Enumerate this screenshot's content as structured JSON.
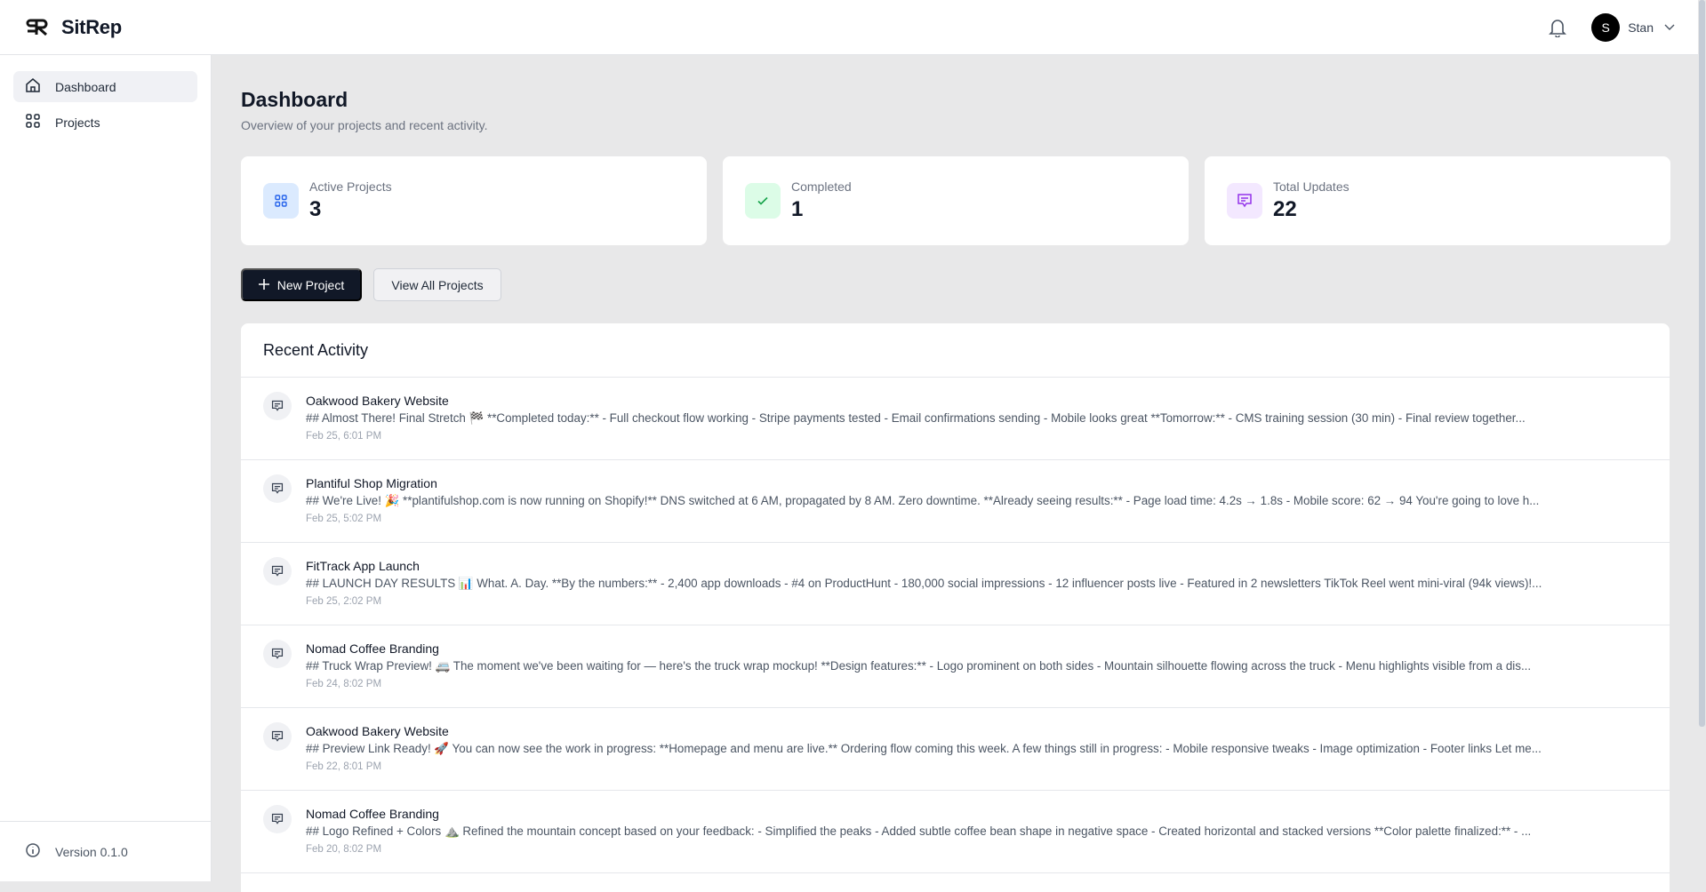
{
  "app": {
    "name": "SitRep",
    "logo_icon": "sr-monogram"
  },
  "header": {
    "notifications_icon": "bell-icon",
    "user": {
      "initial": "S",
      "name": "Stan"
    }
  },
  "sidebar": {
    "items": [
      {
        "label": "Dashboard",
        "icon": "home-icon",
        "active": true
      },
      {
        "label": "Projects",
        "icon": "grid-icon",
        "active": false
      }
    ],
    "version": "Version 0.1.0"
  },
  "page": {
    "title": "Dashboard",
    "subtitle": "Overview of your projects and recent activity."
  },
  "stats": [
    {
      "label": "Active Projects",
      "value": "3",
      "icon": "grid-icon",
      "color": "#2563eb",
      "bg": "#dbeafe"
    },
    {
      "label": "Completed",
      "value": "1",
      "icon": "check-icon",
      "color": "#16a34a",
      "bg": "#dcfce7"
    },
    {
      "label": "Total Updates",
      "value": "22",
      "icon": "message-icon",
      "color": "#9333ea",
      "bg": "#f3e8ff"
    }
  ],
  "actions": {
    "new_project": "New Project",
    "view_all": "View All Projects"
  },
  "activity": {
    "title": "Recent Activity",
    "items": [
      {
        "project": "Oakwood Bakery Website",
        "text": "## Almost There! Final Stretch 🏁 **Completed today:** - Full checkout flow working - Stripe payments tested - Email confirmations sending - Mobile looks great **Tomorrow:** - CMS training session (30 min) - Final review together...",
        "date": "Feb 25, 6:01 PM"
      },
      {
        "project": "Plantiful Shop Migration",
        "text": "## We're Live! 🎉 **plantifulshop.com is now running on Shopify!** DNS switched at 6 AM, propagated by 8 AM. Zero downtime. **Already seeing results:** - Page load time: 4.2s → 1.8s - Mobile score: 62 → 94 You're going to love h...",
        "date": "Feb 25, 5:02 PM"
      },
      {
        "project": "FitTrack App Launch",
        "text": "## LAUNCH DAY RESULTS 📊 What. A. Day. **By the numbers:** - 2,400 app downloads - #4 on ProductHunt - 180,000 social impressions - 12 influencer posts live - Featured in 2 newsletters TikTok Reel went mini-viral (94k views)!...",
        "date": "Feb 25, 2:02 PM"
      },
      {
        "project": "Nomad Coffee Branding",
        "text": "## Truck Wrap Preview! 🚐 The moment we've been waiting for — here's the truck wrap mockup! **Design features:** - Logo prominent on both sides - Mountain silhouette flowing across the truck - Menu highlights visible from a dis...",
        "date": "Feb 24, 8:02 PM"
      },
      {
        "project": "Oakwood Bakery Website",
        "text": "## Preview Link Ready! 🚀 You can now see the work in progress: **Homepage and menu are live.** Ordering flow coming this week. A few things still in progress: - Mobile responsive tweaks - Image optimization - Footer links Let me...",
        "date": "Feb 22, 8:01 PM"
      },
      {
        "project": "Nomad Coffee Branding",
        "text": "## Logo Refined + Colors ⛰️ Refined the mountain concept based on your feedback: - Simplified the peaks - Added subtle coffee bean shape in negative space - Created horizontal and stacked versions **Color palette finalized:** - ...",
        "date": "Feb 20, 8:02 PM"
      }
    ]
  }
}
